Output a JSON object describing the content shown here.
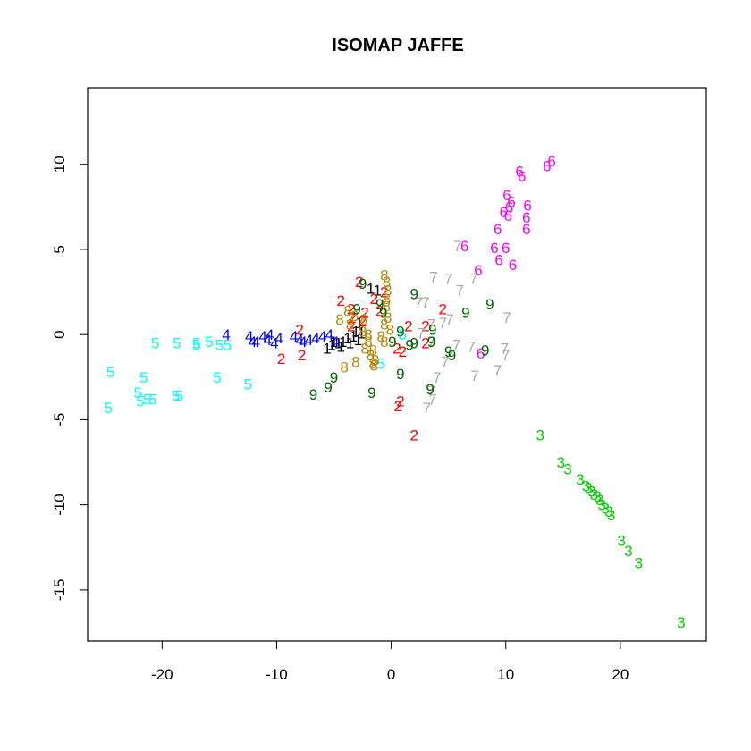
{
  "chart_data": {
    "type": "scatter",
    "title": "ISOMAP JAFFE",
    "xlabel": "",
    "ylabel": "",
    "xlim": [
      -26.5,
      27.5
    ],
    "ylim": [
      -18.0,
      14.5
    ],
    "grid": false,
    "x_ticks": [
      -20,
      -10,
      0,
      10,
      20
    ],
    "x_tick_labels": [
      "-20",
      "-10",
      "0",
      "10",
      "20"
    ],
    "y_ticks": [
      -15,
      -10,
      -5,
      0,
      5,
      10
    ],
    "y_tick_labels": [
      "-15",
      "-10",
      "-5",
      "0",
      "5",
      "10"
    ],
    "series": [
      {
        "label": "1",
        "color": "#000000",
        "points": [
          [
            -1.8,
            2.7
          ],
          [
            -1.2,
            2.6
          ],
          [
            -2.8,
            0.7
          ],
          [
            -3.1,
            0.2
          ],
          [
            -3.8,
            -0.2
          ],
          [
            -4.2,
            -0.4
          ],
          [
            -4.6,
            -0.5
          ],
          [
            -5.2,
            -0.6
          ],
          [
            -5.6,
            -0.8
          ],
          [
            -2.9,
            -0.3
          ],
          [
            -3.3,
            -0.1
          ],
          [
            -5.0,
            -0.4
          ],
          [
            -4.4,
            -0.7
          ],
          [
            -3.6,
            -0.5
          ],
          [
            -2.6,
            0.1
          ]
        ]
      },
      {
        "label": "2",
        "color": "#ff0000",
        "points": [
          [
            -2.8,
            3.1
          ],
          [
            -4.4,
            2.0
          ],
          [
            -3.5,
            1.5
          ],
          [
            -1.0,
            1.8
          ],
          [
            -1.0,
            1.4
          ],
          [
            -0.6,
            2.5
          ],
          [
            -1.5,
            2.1
          ],
          [
            -2.3,
            1.3
          ],
          [
            -3.4,
            1.0
          ],
          [
            -3.5,
            0.5
          ],
          [
            1.5,
            0.5
          ],
          [
            3.0,
            0.5
          ],
          [
            4.5,
            1.5
          ],
          [
            3.0,
            -0.5
          ],
          [
            1.0,
            -1.0
          ],
          [
            0.5,
            -0.8
          ],
          [
            -7.8,
            -1.2
          ],
          [
            -9.6,
            -1.4
          ],
          [
            -8.0,
            0.3
          ],
          [
            0.6,
            -4.2
          ],
          [
            0.8,
            -3.9
          ],
          [
            2.0,
            -5.9
          ],
          [
            -2.5,
            0.8
          ]
        ]
      },
      {
        "label": "3",
        "color": "#00cd00",
        "points": [
          [
            13.0,
            -5.9
          ],
          [
            14.8,
            -7.5
          ],
          [
            15.4,
            -7.9
          ],
          [
            16.5,
            -8.5
          ],
          [
            17.0,
            -8.9
          ],
          [
            17.5,
            -9.2
          ],
          [
            18.0,
            -9.5
          ],
          [
            17.2,
            -9.0
          ],
          [
            17.7,
            -9.4
          ],
          [
            18.2,
            -9.7
          ],
          [
            18.7,
            -10.2
          ],
          [
            19.2,
            -10.6
          ],
          [
            19.0,
            -10.4
          ],
          [
            18.4,
            -10.0
          ],
          [
            20.1,
            -12.1
          ],
          [
            20.7,
            -12.7
          ],
          [
            21.6,
            -13.4
          ],
          [
            25.3,
            -16.9
          ]
        ]
      },
      {
        "label": "4",
        "color": "#0000ff",
        "points": [
          [
            -14.4,
            0.0
          ],
          [
            -12.4,
            -0.1
          ],
          [
            -11.8,
            -0.4
          ],
          [
            -10.8,
            -0.3
          ],
          [
            -10.2,
            -0.5
          ],
          [
            -9.8,
            -0.2
          ],
          [
            -8.5,
            -0.1
          ],
          [
            -8.0,
            -0.3
          ],
          [
            -7.2,
            -0.3
          ],
          [
            -6.6,
            -0.2
          ],
          [
            -6.0,
            -0.1
          ],
          [
            -5.4,
            0.0
          ],
          [
            -4.9,
            -0.4
          ],
          [
            -11.2,
            -0.1
          ],
          [
            -12.1,
            -0.4
          ],
          [
            -10.6,
            0.0
          ],
          [
            -7.7,
            -0.4
          ]
        ]
      },
      {
        "label": "5",
        "color": "#00ffff",
        "points": [
          [
            -24.5,
            -2.2
          ],
          [
            -24.7,
            -4.3
          ],
          [
            -22.1,
            -3.4
          ],
          [
            -21.9,
            -3.9
          ],
          [
            -21.3,
            -3.8
          ],
          [
            -20.8,
            -3.8
          ],
          [
            -21.6,
            -2.5
          ],
          [
            -20.6,
            -0.5
          ],
          [
            -18.7,
            -0.5
          ],
          [
            -18.8,
            -3.6
          ],
          [
            -18.5,
            -3.6
          ],
          [
            -17.0,
            -0.6
          ],
          [
            -15.9,
            -0.4
          ],
          [
            -15.0,
            -0.6
          ],
          [
            -14.3,
            -0.6
          ],
          [
            -15.2,
            -2.5
          ],
          [
            -12.5,
            -2.9
          ],
          [
            -0.9,
            -1.7
          ],
          [
            1.0,
            0.0
          ],
          [
            -17.0,
            -0.5
          ]
        ]
      },
      {
        "label": "6",
        "color": "#ff00ff",
        "points": [
          [
            11.2,
            9.6
          ],
          [
            11.4,
            9.3
          ],
          [
            13.6,
            9.9
          ],
          [
            14.0,
            10.2
          ],
          [
            10.1,
            8.2
          ],
          [
            10.5,
            7.8
          ],
          [
            11.9,
            7.6
          ],
          [
            9.8,
            7.2
          ],
          [
            11.8,
            6.9
          ],
          [
            10.2,
            7.0
          ],
          [
            9.3,
            6.2
          ],
          [
            11.8,
            6.2
          ],
          [
            6.4,
            5.2
          ],
          [
            9.0,
            5.1
          ],
          [
            10.0,
            5.1
          ],
          [
            9.4,
            4.4
          ],
          [
            10.6,
            4.1
          ],
          [
            7.6,
            3.8
          ],
          [
            7.8,
            -1.1
          ],
          [
            10.3,
            7.5
          ]
        ]
      },
      {
        "label": "7",
        "color": "#aaaaaa",
        "points": [
          [
            5.8,
            5.2
          ],
          [
            3.7,
            3.4
          ],
          [
            5.0,
            3.3
          ],
          [
            6.0,
            2.6
          ],
          [
            7.2,
            3.3
          ],
          [
            2.4,
            1.9
          ],
          [
            3.0,
            1.9
          ],
          [
            3.5,
            0.6
          ],
          [
            4.5,
            0.7
          ],
          [
            5.1,
            0.9
          ],
          [
            10.1,
            1.0
          ],
          [
            3.5,
            -0.4
          ],
          [
            5.7,
            -0.6
          ],
          [
            7.0,
            -0.7
          ],
          [
            9.9,
            -0.8
          ],
          [
            10.0,
            -1.2
          ],
          [
            4.7,
            -1.6
          ],
          [
            9.3,
            -2.1
          ],
          [
            7.3,
            -2.4
          ],
          [
            4.0,
            -2.5
          ],
          [
            3.5,
            -3.3
          ],
          [
            3.6,
            -3.8
          ],
          [
            3.1,
            -4.3
          ],
          [
            2.6,
            0.1
          ]
        ]
      },
      {
        "label": "8",
        "color": "#b8860b",
        "points": [
          [
            -0.6,
            3.5
          ],
          [
            -0.4,
            3.1
          ],
          [
            -0.3,
            2.6
          ],
          [
            -0.4,
            2.1
          ],
          [
            -0.4,
            1.7
          ],
          [
            -3.8,
            1.4
          ],
          [
            -3.2,
            1.1
          ],
          [
            -2.4,
            0.9
          ],
          [
            -4.5,
            0.9
          ],
          [
            -0.3,
            1.0
          ],
          [
            -0.6,
            0.6
          ],
          [
            -0.1,
            0.3
          ],
          [
            -2.5,
            0.2
          ],
          [
            -2.0,
            0.0
          ],
          [
            -0.9,
            -0.1
          ],
          [
            -0.6,
            -0.4
          ],
          [
            -2.0,
            -0.4
          ],
          [
            -2.3,
            -0.8
          ],
          [
            -1.6,
            -0.9
          ],
          [
            -1.8,
            -1.2
          ],
          [
            -1.4,
            -1.5
          ],
          [
            -1.6,
            -1.7
          ],
          [
            -3.1,
            -1.6
          ],
          [
            -4.1,
            -1.9
          ],
          [
            -1.5,
            -1.8
          ],
          [
            -3.6,
            0.6
          ]
        ]
      },
      {
        "label": "9",
        "color": "#006400",
        "points": [
          [
            -2.5,
            3.0
          ],
          [
            -3.0,
            1.5
          ],
          [
            -0.7,
            1.3
          ],
          [
            2.0,
            2.4
          ],
          [
            6.5,
            1.3
          ],
          [
            8.6,
            1.8
          ],
          [
            3.6,
            0.3
          ],
          [
            0.8,
            0.2
          ],
          [
            0.1,
            -0.4
          ],
          [
            1.6,
            -0.6
          ],
          [
            2.0,
            -0.5
          ],
          [
            3.5,
            -0.4
          ],
          [
            5.0,
            -1.0
          ],
          [
            5.3,
            -1.2
          ],
          [
            8.2,
            -0.9
          ],
          [
            0.8,
            -2.3
          ],
          [
            3.4,
            -3.2
          ],
          [
            -5.0,
            -2.5
          ],
          [
            -5.5,
            -3.1
          ],
          [
            -6.8,
            -3.5
          ],
          [
            -1.7,
            -3.4
          ],
          [
            -1.0,
            1.8
          ]
        ]
      }
    ]
  }
}
